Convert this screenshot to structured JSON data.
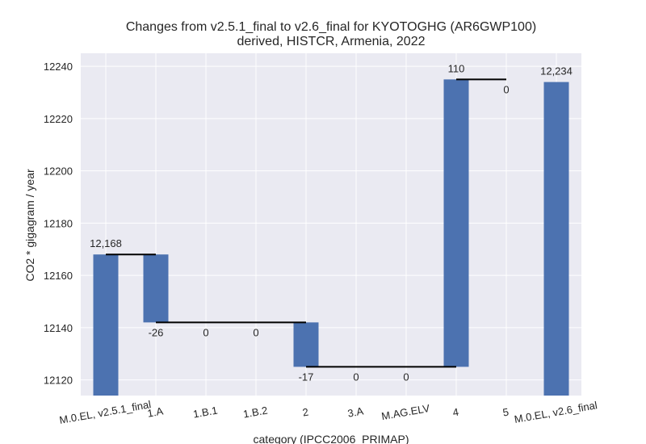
{
  "chart_data": {
    "type": "waterfall",
    "title": "Changes from v2.5.1_final to v2.6_final for KYOTOGHG (AR6GWP100)",
    "subtitle": "derived, HISTCR, Armenia, 2022",
    "xlabel": "category (IPCC2006_PRIMAP)",
    "ylabel": "CO2 * gigagram / year",
    "ylim": [
      12114,
      12245
    ],
    "yticks": [
      12120,
      12140,
      12160,
      12180,
      12200,
      12220,
      12240
    ],
    "grid": true,
    "categories": [
      "M.0.EL, v2.5.1_final",
      "1.A",
      "1.B.1",
      "1.B.2",
      "2",
      "3.A",
      "M.AG.ELV",
      "4",
      "5",
      "M.0.EL, v2.6_final"
    ],
    "values": [
      12168,
      -26,
      0,
      0,
      -17,
      0,
      0,
      110,
      0,
      12234
    ],
    "labels": [
      "12,168",
      "-26",
      "0",
      "0",
      "-17",
      "0",
      "0",
      "110",
      "0",
      "12,234"
    ],
    "bar_color": "#4c72b0"
  }
}
